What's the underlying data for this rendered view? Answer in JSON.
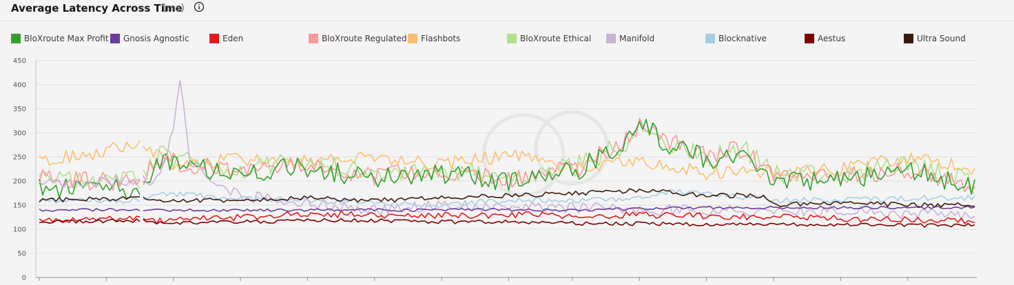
{
  "header": {
    "title": "Average Latency Across Time",
    "unit": "(ms)"
  },
  "legend": [
    {
      "label": "BloXroute Max Profit",
      "color": "#33a02c"
    },
    {
      "label": "Gnosis Agnostic",
      "color": "#6a3d9a"
    },
    {
      "label": "Eden",
      "color": "#e31a1c"
    },
    {
      "label": "BloXroute Regulated",
      "color": "#fb9a99"
    },
    {
      "label": "Flashbots",
      "color": "#fdbf6f"
    },
    {
      "label": "BloXroute Ethical",
      "color": "#b2df8a"
    },
    {
      "label": "Manifold",
      "color": "#cab2d6"
    },
    {
      "label": "Blocknative",
      "color": "#a6cee3"
    },
    {
      "label": "Aestus",
      "color": "#7f0000"
    },
    {
      "label": "Ultra Sound",
      "color": "#3b1a0e"
    }
  ],
  "chart_data": {
    "type": "line",
    "title": "Average Latency Across Time",
    "ylabel": "ms",
    "xlabel": "",
    "ylim": [
      0,
      450
    ],
    "yticks": [
      0,
      50,
      100,
      150,
      200,
      250,
      300,
      350,
      400,
      450
    ],
    "grid": true,
    "n_points": 280,
    "gap_after_index": 30,
    "series": [
      {
        "name": "Flashbots",
        "color": "#fdbf6f",
        "anchors": [
          [
            0,
            245
          ],
          [
            15,
            255
          ],
          [
            30,
            280
          ],
          [
            40,
            235
          ],
          [
            60,
            245
          ],
          [
            80,
            240
          ],
          [
            100,
            250
          ],
          [
            120,
            235
          ],
          [
            140,
            255
          ],
          [
            160,
            225
          ],
          [
            175,
            240
          ],
          [
            185,
            235
          ],
          [
            200,
            215
          ],
          [
            220,
            220
          ],
          [
            240,
            225
          ],
          [
            260,
            250
          ],
          [
            279,
            225
          ]
        ],
        "noise": 14
      },
      {
        "name": "BloXroute Ethical",
        "color": "#b2df8a",
        "anchors": [
          [
            0,
            210
          ],
          [
            30,
            200
          ],
          [
            35,
            255
          ],
          [
            45,
            240
          ],
          [
            60,
            225
          ],
          [
            80,
            240
          ],
          [
            100,
            215
          ],
          [
            120,
            225
          ],
          [
            140,
            210
          ],
          [
            160,
            230
          ],
          [
            175,
            280
          ],
          [
            180,
            325
          ],
          [
            185,
            290
          ],
          [
            200,
            250
          ],
          [
            210,
            270
          ],
          [
            220,
            215
          ],
          [
            240,
            215
          ],
          [
            260,
            235
          ],
          [
            279,
            195
          ]
        ],
        "noise": 22
      },
      {
        "name": "BloXroute Regulated",
        "color": "#fb9a99",
        "anchors": [
          [
            0,
            205
          ],
          [
            30,
            195
          ],
          [
            35,
            245
          ],
          [
            45,
            235
          ],
          [
            60,
            220
          ],
          [
            80,
            235
          ],
          [
            100,
            210
          ],
          [
            120,
            220
          ],
          [
            140,
            205
          ],
          [
            160,
            225
          ],
          [
            175,
            285
          ],
          [
            180,
            330
          ],
          [
            185,
            290
          ],
          [
            200,
            255
          ],
          [
            210,
            265
          ],
          [
            220,
            205
          ],
          [
            240,
            210
          ],
          [
            260,
            220
          ],
          [
            279,
            190
          ]
        ],
        "noise": 20
      },
      {
        "name": "BloXroute Max Profit",
        "color": "#33a02c",
        "anchors": [
          [
            0,
            185
          ],
          [
            30,
            185
          ],
          [
            35,
            240
          ],
          [
            45,
            230
          ],
          [
            60,
            215
          ],
          [
            80,
            230
          ],
          [
            100,
            205
          ],
          [
            120,
            215
          ],
          [
            140,
            200
          ],
          [
            160,
            220
          ],
          [
            175,
            280
          ],
          [
            180,
            320
          ],
          [
            185,
            285
          ],
          [
            200,
            245
          ],
          [
            210,
            250
          ],
          [
            220,
            195
          ],
          [
            240,
            205
          ],
          [
            260,
            225
          ],
          [
            279,
            185
          ]
        ],
        "noise": 22
      },
      {
        "name": "Manifold",
        "color": "#cab2d6",
        "anchors": [
          [
            0,
            195
          ],
          [
            30,
            200
          ],
          [
            35,
            200
          ],
          [
            40,
            300
          ],
          [
            42,
            405
          ],
          [
            45,
            240
          ],
          [
            55,
            180
          ],
          [
            60,
            170
          ],
          [
            80,
            155
          ],
          [
            100,
            140
          ],
          [
            120,
            150
          ],
          [
            140,
            145
          ],
          [
            160,
            145
          ],
          [
            180,
            140
          ],
          [
            200,
            140
          ],
          [
            220,
            135
          ],
          [
            240,
            140
          ],
          [
            260,
            130
          ],
          [
            279,
            130
          ]
        ],
        "noise": 12
      },
      {
        "name": "Blocknative",
        "color": "#a6cee3",
        "anchors": [
          [
            0,
            160
          ],
          [
            30,
            160
          ],
          [
            35,
            175
          ],
          [
            60,
            165
          ],
          [
            80,
            160
          ],
          [
            100,
            155
          ],
          [
            120,
            150
          ],
          [
            140,
            160
          ],
          [
            160,
            160
          ],
          [
            180,
            165
          ],
          [
            190,
            180
          ],
          [
            200,
            175
          ],
          [
            220,
            160
          ],
          [
            240,
            160
          ],
          [
            260,
            165
          ],
          [
            279,
            165
          ]
        ],
        "noise": 6
      },
      {
        "name": "Ultra Sound",
        "color": "#3b1a0e",
        "anchors": [
          [
            0,
            160
          ],
          [
            30,
            165
          ],
          [
            35,
            160
          ],
          [
            60,
            160
          ],
          [
            80,
            165
          ],
          [
            100,
            160
          ],
          [
            120,
            165
          ],
          [
            140,
            170
          ],
          [
            160,
            175
          ],
          [
            180,
            180
          ],
          [
            200,
            170
          ],
          [
            215,
            170
          ],
          [
            220,
            150
          ],
          [
            240,
            155
          ],
          [
            260,
            150
          ],
          [
            279,
            150
          ]
        ],
        "noise": 5
      },
      {
        "name": "Gnosis Agnostic",
        "color": "#6a3d9a",
        "anchors": [
          [
            0,
            140
          ],
          [
            30,
            140
          ],
          [
            35,
            140
          ],
          [
            100,
            140
          ],
          [
            160,
            140
          ],
          [
            200,
            145
          ],
          [
            240,
            145
          ],
          [
            279,
            145
          ]
        ],
        "noise": 3
      },
      {
        "name": "Eden",
        "color": "#e31a1c",
        "anchors": [
          [
            0,
            120
          ],
          [
            30,
            122
          ],
          [
            35,
            118
          ],
          [
            60,
            125
          ],
          [
            80,
            132
          ],
          [
            100,
            130
          ],
          [
            120,
            128
          ],
          [
            140,
            130
          ],
          [
            160,
            128
          ],
          [
            180,
            130
          ],
          [
            200,
            128
          ],
          [
            220,
            125
          ],
          [
            240,
            122
          ],
          [
            260,
            120
          ],
          [
            279,
            118
          ]
        ],
        "noise": 7
      },
      {
        "name": "Aestus",
        "color": "#7f0000",
        "anchors": [
          [
            0,
            115
          ],
          [
            30,
            118
          ],
          [
            35,
            112
          ],
          [
            60,
            115
          ],
          [
            80,
            118
          ],
          [
            100,
            118
          ],
          [
            120,
            115
          ],
          [
            140,
            115
          ],
          [
            160,
            112
          ],
          [
            180,
            112
          ],
          [
            200,
            110
          ],
          [
            220,
            110
          ],
          [
            240,
            110
          ],
          [
            260,
            108
          ],
          [
            279,
            108
          ]
        ],
        "noise": 4
      }
    ]
  }
}
